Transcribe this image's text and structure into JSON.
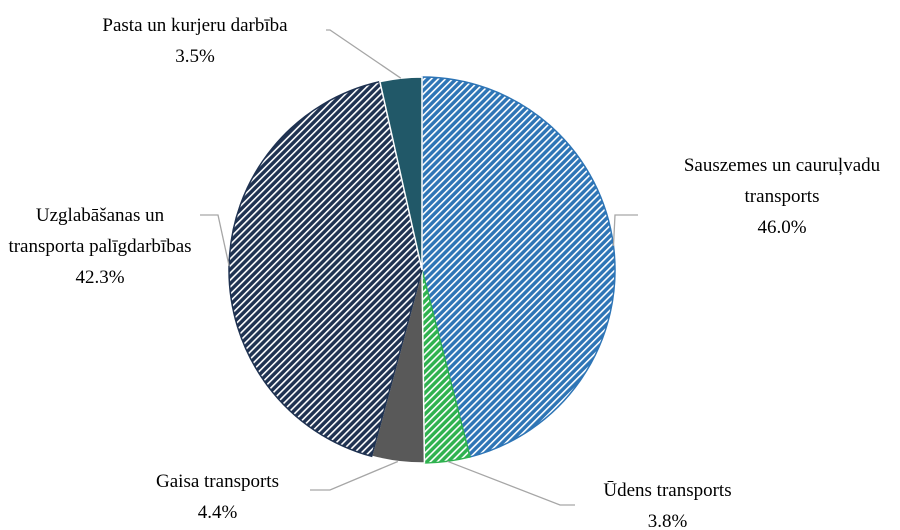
{
  "chart_data": {
    "type": "pie",
    "categories": [
      "Sauszemes un cauruļvadu transports",
      "Ūdens transports",
      "Gaisa transports",
      "Uzglabāšanas un transporta palīgdarbības",
      "Pasta un kurjeru darbība"
    ],
    "values": [
      46.0,
      3.8,
      4.4,
      42.3,
      3.5
    ],
    "value_labels": [
      "46.0%",
      "3.8%",
      "4.4%",
      "42.3%",
      "3.5%"
    ],
    "colors": [
      "#2e75b6",
      "#2fb24f",
      "#595959",
      "#1f3251",
      "#215868"
    ],
    "fills": [
      "hatch",
      "hatch",
      "solid",
      "hatch",
      "solid"
    ]
  }
}
